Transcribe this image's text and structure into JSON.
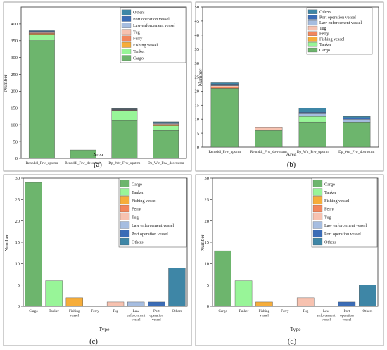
{
  "colors": {
    "Cargo": "#6db56d",
    "Tanker": "#98f598",
    "Fishing vessel": "#f6ad3a",
    "Ferry": "#f2865c",
    "Tug": "#f7c2b0",
    "Law enforcement vessel": "#a6bde0",
    "Port operation vessel": "#3b6cb6",
    "Others": "#3e86a6"
  },
  "chart_data": [
    {
      "id": "a",
      "type": "bar",
      "stacked": true,
      "caption": "(a)",
      "xlabel": "Area",
      "ylabel": "Number",
      "ylim": [
        0,
        450
      ],
      "yticks": [
        0,
        50,
        100,
        150,
        200,
        250,
        300,
        350,
        400
      ],
      "categories": [
        "Rennddl_Frw_upstrm",
        "Rennddl_Frw_downstrm",
        "Dp_Wtr_Frw_upstrm",
        "Dp_Wtr_Frw_downstrm"
      ],
      "legend_position": "top-right",
      "series": [
        {
          "name": "Cargo",
          "values": [
            350,
            25,
            113,
            83
          ]
        },
        {
          "name": "Tanker",
          "values": [
            17,
            0,
            28,
            14
          ]
        },
        {
          "name": "Fishing vessel",
          "values": [
            3,
            0,
            2,
            3
          ]
        },
        {
          "name": "Ferry",
          "values": [
            2,
            0,
            1,
            1
          ]
        },
        {
          "name": "Tug",
          "values": [
            2,
            0,
            1,
            2
          ]
        },
        {
          "name": "Law enforcement vessel",
          "values": [
            2,
            0,
            1,
            2
          ]
        },
        {
          "name": "Port operation vessel",
          "values": [
            2,
            0,
            1,
            2
          ]
        },
        {
          "name": "Others",
          "values": [
            2,
            0,
            1,
            2
          ]
        }
      ]
    },
    {
      "id": "b",
      "type": "bar",
      "stacked": true,
      "caption": "(b)",
      "xlabel": "Area",
      "ylabel": "Number",
      "ylim": [
        0,
        50
      ],
      "yticks": [
        0,
        5,
        10,
        15,
        20,
        25,
        30,
        35,
        40,
        45,
        50
      ],
      "categories": [
        "Rennddl_Frw_upstrm",
        "Rennddl_Frw_downstrm",
        "Dp_Wtr_Frw_upstrm",
        "Dp_Wtr_Frw_downstrm"
      ],
      "legend_position": "top-right",
      "series": [
        {
          "name": "Cargo",
          "values": [
            21,
            6,
            9,
            9
          ]
        },
        {
          "name": "Tanker",
          "values": [
            0,
            0,
            2,
            0
          ]
        },
        {
          "name": "Fishing vessel",
          "values": [
            0,
            0,
            0,
            0
          ]
        },
        {
          "name": "Ferry",
          "values": [
            0.5,
            0,
            0,
            0
          ]
        },
        {
          "name": "Tug",
          "values": [
            0.5,
            1,
            0,
            0
          ]
        },
        {
          "name": "Law enforcement vessel",
          "values": [
            0,
            0,
            1,
            1
          ]
        },
        {
          "name": "Port operation vessel",
          "values": [
            0.5,
            0,
            0.5,
            0.5
          ]
        },
        {
          "name": "Others",
          "values": [
            0.5,
            0,
            1.5,
            0.5
          ]
        }
      ]
    },
    {
      "id": "c",
      "type": "bar",
      "caption": "(c)",
      "xlabel": "Type",
      "ylabel": "Number",
      "ylim": [
        0,
        30
      ],
      "yticks": [
        0,
        5,
        10,
        15,
        20,
        25,
        30
      ],
      "categories": [
        "Cargo",
        "Tanker",
        "Fishing vessel",
        "Ferry",
        "Tug",
        "Law enforcement vessel",
        "Port operation vessel",
        "Others"
      ],
      "tick_labels": [
        [
          "Cargo"
        ],
        [
          "Tanker"
        ],
        [
          "Fishing",
          "vessel"
        ],
        [
          "Ferry"
        ],
        [
          "Tug"
        ],
        [
          "Law",
          "enforcement",
          "vessel"
        ],
        [
          "Port",
          "operation",
          "vessel"
        ],
        [
          "Others"
        ]
      ],
      "values": [
        29,
        6,
        2,
        0,
        1,
        1,
        1,
        9
      ],
      "legend_position": "top-right",
      "legend": [
        "Cargo",
        "Tanker",
        "Fishing vessel",
        "Ferry",
        "Tug",
        "Law enforcement vessel",
        "Port operation vessel",
        "Others"
      ]
    },
    {
      "id": "d",
      "type": "bar",
      "caption": "(d)",
      "xlabel": "Type",
      "ylabel": "Number",
      "ylim": [
        0,
        30
      ],
      "yticks": [
        0,
        5,
        10,
        15,
        20,
        25,
        30
      ],
      "categories": [
        "Cargo",
        "Tanker",
        "Fishing vessel",
        "Ferry",
        "Tug",
        "Law enforcement vessel",
        "Port operation vessel",
        "Others"
      ],
      "tick_labels": [
        [
          "Cargo"
        ],
        [
          "Tanker"
        ],
        [
          "Fishing",
          "vessel"
        ],
        [
          "Ferry"
        ],
        [
          "Tug"
        ],
        [
          "Law",
          "enforcement",
          "vessel"
        ],
        [
          "Port",
          "operation",
          "vessel"
        ],
        [
          "Others"
        ]
      ],
      "values": [
        13,
        6,
        1,
        0,
        2,
        0,
        1,
        5
      ],
      "legend_position": "top-right",
      "legend": [
        "Cargo",
        "Tanker",
        "Fishing vessel",
        "Ferry",
        "Tug",
        "Law enforcement vessel",
        "Port operation vessel",
        "Others"
      ]
    }
  ]
}
